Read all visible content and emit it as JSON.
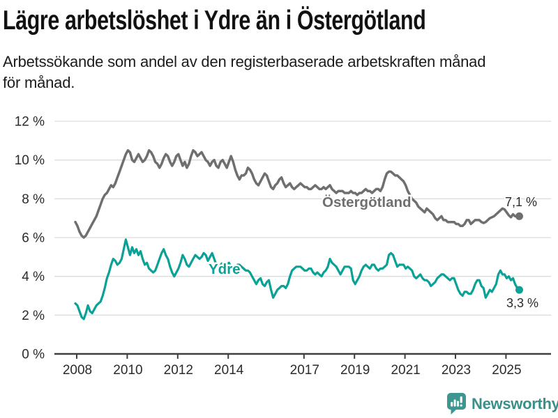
{
  "header": {
    "title": "Lägre arbetslöshet i Ydre än i Östergötland",
    "subtitle_line1": "Arbetssökande som andel av den registerbaserade arbetskraften månad",
    "subtitle_line2": "för månad."
  },
  "chart_data": {
    "type": "line",
    "title": "Lägre arbetslöshet i Ydre än i Östergötland",
    "subtitle": "Arbetssökande som andel av den registerbaserade arbetskraften månad för månad.",
    "unit": "percent",
    "x_start": "2008-01",
    "x_end": "2025-08",
    "x_interval": "monthly",
    "ylim": [
      0,
      12
    ],
    "grid": true,
    "legend_position": "inline-labels-on-lines",
    "y_tick_values": [
      0,
      2,
      4,
      6,
      8,
      10,
      12
    ],
    "y_tick_labels": [
      "0 %",
      "2 %",
      "4 %",
      "6 %",
      "8 %",
      "10 %",
      "12 %"
    ],
    "x_tick_years": [
      2008,
      2010,
      2012,
      2014,
      2017,
      2019,
      2021,
      2023,
      2025
    ],
    "x_tick_labels": [
      "2008",
      "2010",
      "2012",
      "2014",
      "2017",
      "2019",
      "2021",
      "2023",
      "2025"
    ],
    "series": [
      {
        "name": "Östergötland",
        "color": "#6f6f6f",
        "end_label": "7,1 %",
        "last_value": 7.1,
        "values": [
          6.8,
          6.6,
          6.3,
          6.1,
          6.0,
          6.1,
          6.3,
          6.5,
          6.7,
          6.9,
          7.1,
          7.4,
          7.7,
          8.0,
          8.2,
          8.3,
          8.5,
          8.7,
          8.6,
          8.8,
          9.1,
          9.4,
          9.7,
          10.0,
          10.3,
          10.5,
          10.4,
          10.0,
          9.9,
          10.1,
          10.3,
          10.1,
          9.9,
          10.0,
          10.2,
          10.5,
          10.4,
          10.2,
          9.9,
          9.8,
          9.6,
          9.8,
          10.1,
          10.3,
          10.2,
          9.9,
          9.7,
          9.9,
          10.2,
          10.3,
          10.0,
          9.7,
          9.9,
          9.6,
          9.8,
          10.2,
          10.5,
          10.4,
          10.2,
          10.3,
          10.4,
          10.2,
          10.0,
          9.9,
          9.7,
          9.9,
          10.0,
          9.7,
          9.6,
          9.9,
          10.0,
          9.8,
          9.6,
          9.9,
          10.2,
          9.9,
          9.5,
          9.2,
          9.0,
          9.2,
          9.2,
          9.3,
          9.6,
          9.5,
          9.3,
          9.0,
          8.8,
          8.7,
          8.9,
          9.1,
          9.3,
          9.2,
          8.9,
          8.6,
          8.5,
          8.7,
          8.8,
          9.0,
          9.1,
          8.8,
          8.6,
          8.7,
          8.8,
          8.6,
          8.5,
          8.6,
          8.7,
          8.8,
          8.7,
          8.6,
          8.6,
          8.5,
          8.5,
          8.6,
          8.7,
          8.6,
          8.5,
          8.5,
          8.6,
          8.5,
          8.6,
          8.7,
          8.5,
          8.4,
          8.3,
          8.4,
          8.4,
          8.4,
          8.3,
          8.3,
          8.3,
          8.4,
          8.3,
          8.3,
          8.2,
          8.3,
          8.3,
          8.4,
          8.5,
          8.4,
          8.4,
          8.3,
          8.4,
          8.5,
          8.5,
          8.4,
          8.6,
          9.0,
          9.3,
          9.4,
          9.4,
          9.3,
          9.2,
          9.2,
          9.1,
          9.0,
          8.9,
          8.7,
          8.4,
          8.2,
          8.0,
          7.9,
          7.8,
          7.6,
          7.5,
          7.4,
          7.3,
          7.5,
          7.4,
          7.3,
          7.2,
          7.0,
          6.9,
          7.0,
          7.1,
          6.9,
          6.9,
          6.8,
          6.8,
          6.8,
          6.8,
          6.7,
          6.7,
          6.6,
          6.6,
          6.7,
          6.9,
          6.9,
          6.7,
          6.8,
          6.9,
          6.9,
          6.9,
          6.8,
          6.75,
          6.8,
          6.9,
          7.0,
          7.05,
          7.1,
          7.2,
          7.3,
          7.4,
          7.5,
          7.45,
          7.3,
          7.15,
          7.05,
          7.2,
          7.1,
          7.1,
          7.1
        ]
      },
      {
        "name": "Ydre",
        "color": "#0aa296",
        "end_label": "3,3 %",
        "last_value": 3.3,
        "values": [
          2.6,
          2.5,
          2.2,
          1.9,
          1.8,
          2.1,
          2.5,
          2.2,
          2.1,
          2.3,
          2.5,
          2.6,
          2.7,
          3.0,
          3.4,
          3.9,
          4.2,
          4.6,
          4.9,
          4.8,
          4.6,
          4.7,
          4.9,
          5.4,
          5.9,
          5.5,
          5.1,
          5.5,
          5.2,
          5.4,
          5.1,
          5.3,
          4.9,
          4.6,
          4.7,
          4.4,
          4.3,
          4.2,
          4.3,
          4.6,
          4.9,
          5.2,
          5.4,
          5.1,
          4.9,
          4.5,
          4.2,
          4.0,
          4.2,
          4.4,
          4.7,
          5.1,
          4.9,
          4.6,
          4.5,
          4.7,
          4.9,
          5.1,
          5.0,
          4.9,
          5.0,
          5.2,
          5.1,
          4.8,
          5.0,
          5.2,
          4.9,
          4.6,
          4.4,
          4.6,
          4.7,
          4.5,
          4.6,
          4.7,
          4.5,
          4.5,
          4.5,
          4.6,
          4.6,
          4.5,
          4.4,
          4.3,
          4.3,
          4.2,
          4.0,
          3.8,
          3.6,
          3.8,
          3.9,
          3.6,
          3.5,
          3.7,
          3.8,
          3.3,
          2.9,
          3.1,
          3.3,
          3.4,
          3.5,
          3.5,
          3.4,
          3.6,
          4.0,
          4.3,
          4.4,
          4.5,
          4.5,
          4.5,
          4.4,
          4.3,
          4.3,
          4.4,
          4.4,
          4.2,
          4.1,
          4.2,
          4.1,
          4.0,
          4.2,
          4.3,
          4.5,
          4.9,
          4.7,
          4.6,
          4.5,
          4.3,
          4.1,
          4.3,
          4.5,
          4.5,
          4.5,
          4.4,
          3.8,
          3.6,
          3.8,
          4.0,
          4.3,
          4.5,
          4.6,
          4.5,
          4.4,
          4.6,
          4.6,
          4.4,
          4.3,
          4.4,
          4.4,
          4.5,
          4.6,
          5.1,
          5.2,
          5.1,
          4.8,
          4.5,
          4.6,
          4.6,
          4.6,
          4.4,
          4.5,
          4.4,
          4.3,
          4.0,
          3.9,
          4.0,
          4.1,
          3.9,
          3.8,
          3.8,
          3.7,
          3.5,
          3.6,
          3.7,
          3.9,
          4.0,
          4.1,
          4.1,
          4.0,
          3.9,
          3.8,
          3.9,
          3.9,
          3.6,
          3.3,
          3.1,
          3.0,
          3.2,
          3.2,
          3.1,
          3.1,
          3.3,
          3.6,
          3.8,
          3.8,
          3.5,
          3.4,
          2.9,
          3.1,
          3.3,
          3.2,
          3.4,
          3.6,
          4.1,
          4.3,
          4.1,
          4.1,
          3.9,
          4.0,
          3.8,
          3.9,
          3.6,
          3.4,
          3.3
        ]
      }
    ],
    "axis_colors": {
      "grid": "#dcdcdc",
      "axis": "#3f3f3f",
      "tick_text": "#2b2b2b"
    }
  },
  "branding": {
    "text": "Newsworthy",
    "icon": "newsworthy-chart-bubble-icon",
    "icon_color": "#3d968f",
    "text_color": "#3a9089"
  }
}
